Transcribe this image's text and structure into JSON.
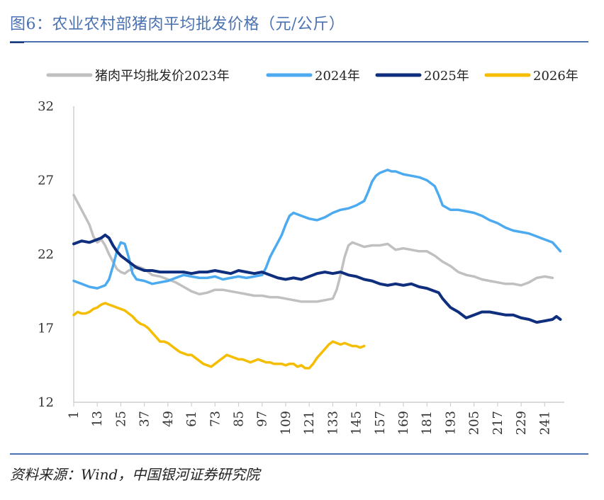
{
  "header": {
    "title": "图6：农业农村部猪肉平均批发价格（元/公斤）"
  },
  "footer": {
    "source": "资料来源：Wind，中国银河证券研究院"
  },
  "chart_data": {
    "type": "line",
    "ylim": [
      12,
      32
    ],
    "yticks": [
      12,
      17,
      22,
      27,
      32
    ],
    "xlim": [
      1,
      251
    ],
    "xticks": [
      1,
      13,
      25,
      37,
      49,
      61,
      73,
      85,
      97,
      109,
      121,
      133,
      145,
      157,
      169,
      181,
      193,
      205,
      217,
      229,
      241
    ],
    "legend_position": "top",
    "grid": false,
    "series": [
      {
        "name": "猪肉平均批发价2023年",
        "color": "#c0c0c0",
        "x": [
          1,
          3,
          5,
          7,
          9,
          11,
          13,
          15,
          17,
          19,
          21,
          23,
          25,
          27,
          29,
          31,
          33,
          35,
          37,
          41,
          45,
          49,
          53,
          57,
          61,
          65,
          69,
          73,
          77,
          81,
          85,
          89,
          93,
          97,
          101,
          105,
          109,
          113,
          117,
          121,
          125,
          129,
          133,
          135,
          137,
          139,
          141,
          143,
          145,
          149,
          153,
          157,
          161,
          165,
          169,
          173,
          177,
          181,
          185,
          189,
          193,
          197,
          201,
          205,
          209,
          213,
          217,
          221,
          225,
          229,
          233,
          237,
          241,
          245
        ],
        "values": [
          26.0,
          25.5,
          25.0,
          24.5,
          24.0,
          23.2,
          22.8,
          23.0,
          22.6,
          22.0,
          21.5,
          21.0,
          20.8,
          20.7,
          20.9,
          21.0,
          21.2,
          21.1,
          21.0,
          20.6,
          20.5,
          20.3,
          20.1,
          19.8,
          19.5,
          19.3,
          19.4,
          19.6,
          19.6,
          19.5,
          19.4,
          19.3,
          19.2,
          19.2,
          19.1,
          19.1,
          19.0,
          18.9,
          18.8,
          18.8,
          18.8,
          18.9,
          19.0,
          19.6,
          20.6,
          21.8,
          22.6,
          22.8,
          22.7,
          22.5,
          22.6,
          22.6,
          22.7,
          22.3,
          22.4,
          22.3,
          22.2,
          22.2,
          21.9,
          21.5,
          21.2,
          20.8,
          20.6,
          20.5,
          20.3,
          20.2,
          20.1,
          20.0,
          20.0,
          19.9,
          20.1,
          20.4,
          20.5,
          20.4
        ]
      },
      {
        "name": "2024年",
        "color": "#4baaf0",
        "x": [
          1,
          5,
          9,
          13,
          17,
          19,
          21,
          23,
          25,
          27,
          29,
          31,
          33,
          37,
          41,
          45,
          49,
          53,
          57,
          61,
          65,
          69,
          73,
          77,
          81,
          85,
          89,
          93,
          97,
          99,
          101,
          103,
          105,
          107,
          109,
          111,
          113,
          117,
          121,
          125,
          129,
          133,
          137,
          141,
          145,
          149,
          151,
          153,
          155,
          157,
          159,
          161,
          163,
          165,
          169,
          173,
          177,
          181,
          185,
          187,
          189,
          193,
          197,
          201,
          205,
          209,
          213,
          217,
          221,
          225,
          229,
          233,
          237,
          241,
          245,
          249
        ],
        "values": [
          20.2,
          20.0,
          19.8,
          19.7,
          19.9,
          20.3,
          21.2,
          22.2,
          22.8,
          22.7,
          21.8,
          20.7,
          20.3,
          20.2,
          20.0,
          20.1,
          20.2,
          20.4,
          20.6,
          20.5,
          20.4,
          20.4,
          20.5,
          20.3,
          20.4,
          20.5,
          20.4,
          20.5,
          20.6,
          21.1,
          21.8,
          22.3,
          22.8,
          23.3,
          24.0,
          24.6,
          24.8,
          24.6,
          24.4,
          24.3,
          24.5,
          24.8,
          25.0,
          25.1,
          25.3,
          25.6,
          26.2,
          26.9,
          27.3,
          27.5,
          27.6,
          27.7,
          27.6,
          27.6,
          27.4,
          27.3,
          27.2,
          27.0,
          26.6,
          26.0,
          25.3,
          25.0,
          25.0,
          24.9,
          24.8,
          24.6,
          24.3,
          24.1,
          23.8,
          23.6,
          23.5,
          23.4,
          23.2,
          23.0,
          22.8,
          22.2
        ]
      },
      {
        "name": "2025年",
        "color": "#0f2f7e",
        "x": [
          1,
          5,
          9,
          13,
          15,
          17,
          19,
          21,
          23,
          25,
          27,
          29,
          33,
          37,
          41,
          45,
          49,
          53,
          57,
          61,
          65,
          69,
          73,
          77,
          81,
          85,
          89,
          93,
          97,
          101,
          105,
          109,
          113,
          117,
          121,
          125,
          129,
          133,
          137,
          141,
          145,
          149,
          153,
          157,
          161,
          165,
          169,
          173,
          177,
          181,
          185,
          187,
          189,
          191,
          193,
          197,
          201,
          205,
          209,
          213,
          217,
          221,
          225,
          229,
          233,
          237,
          241,
          245,
          247,
          249
        ],
        "values": [
          22.7,
          22.9,
          22.8,
          23.0,
          23.1,
          23.3,
          23.1,
          22.6,
          22.2,
          21.9,
          21.7,
          21.5,
          21.1,
          20.9,
          20.9,
          20.8,
          20.8,
          20.8,
          20.8,
          20.7,
          20.8,
          20.8,
          20.9,
          20.8,
          20.7,
          20.9,
          20.8,
          20.7,
          20.8,
          20.6,
          20.4,
          20.3,
          20.4,
          20.3,
          20.5,
          20.7,
          20.8,
          20.7,
          20.8,
          20.6,
          20.5,
          20.3,
          20.2,
          20.0,
          19.9,
          20.0,
          19.9,
          20.0,
          19.8,
          19.7,
          19.5,
          19.4,
          19.0,
          18.7,
          18.4,
          18.1,
          17.7,
          17.9,
          18.1,
          18.1,
          18.0,
          17.9,
          17.9,
          17.7,
          17.6,
          17.4,
          17.5,
          17.6,
          17.8,
          17.6
        ]
      },
      {
        "name": "2026年",
        "color": "#f5bd00",
        "x": [
          1,
          3,
          5,
          7,
          9,
          11,
          13,
          15,
          17,
          19,
          21,
          23,
          25,
          27,
          29,
          31,
          33,
          35,
          37,
          39,
          41,
          43,
          45,
          47,
          49,
          51,
          53,
          55,
          57,
          59,
          61,
          63,
          65,
          67,
          69,
          71,
          73,
          75,
          77,
          79,
          81,
          83,
          85,
          87,
          89,
          91,
          93,
          95,
          97,
          99,
          101,
          103,
          105,
          107,
          109,
          111,
          113,
          115,
          117,
          119,
          121,
          123,
          125,
          127,
          129,
          131,
          133,
          135,
          137,
          139,
          141,
          143,
          145,
          147,
          149
        ],
        "values": [
          17.9,
          18.1,
          18.0,
          18.0,
          18.1,
          18.3,
          18.4,
          18.6,
          18.7,
          18.6,
          18.5,
          18.4,
          18.3,
          18.2,
          18.0,
          17.8,
          17.5,
          17.3,
          17.2,
          17.0,
          16.7,
          16.4,
          16.1,
          16.1,
          16.0,
          15.8,
          15.6,
          15.4,
          15.3,
          15.2,
          15.2,
          15.0,
          14.8,
          14.6,
          14.5,
          14.4,
          14.6,
          14.8,
          15.0,
          15.2,
          15.1,
          15.0,
          14.9,
          14.9,
          14.8,
          14.7,
          14.8,
          14.9,
          14.8,
          14.7,
          14.7,
          14.6,
          14.6,
          14.6,
          14.5,
          14.6,
          14.6,
          14.4,
          14.5,
          14.3,
          14.3,
          14.6,
          15.0,
          15.3,
          15.6,
          15.9,
          16.1,
          16.0,
          15.9,
          16.0,
          15.9,
          15.8,
          15.8,
          15.7,
          15.8
        ]
      }
    ]
  }
}
